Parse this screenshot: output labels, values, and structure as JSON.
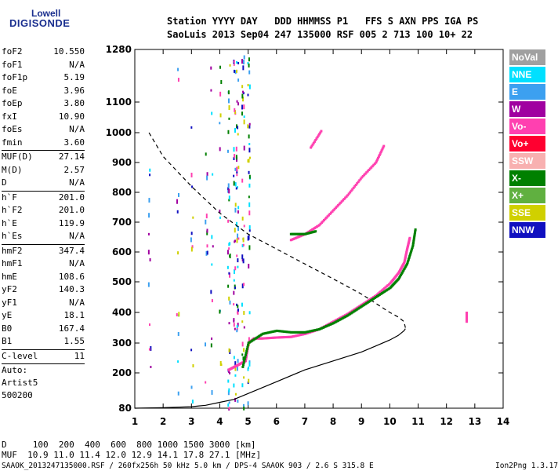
{
  "logo": {
    "line1": "Lowell",
    "line2": "DIGISONDE"
  },
  "header": {
    "row1": "Station YYYY DAY   DDD HHMMSS P1   FFS S AXN PPS IGA PS",
    "row2": "SaoLuis 2013 Sep04 247 135000 RSF 005 2 713 100 10+ 22"
  },
  "params": [
    {
      "k": "foF2",
      "v": "10.550"
    },
    {
      "k": "foF1",
      "v": "N/A"
    },
    {
      "k": "foF1p",
      "v": "5.19"
    },
    {
      "k": "foE",
      "v": "3.96"
    },
    {
      "k": "foEp",
      "v": "3.80"
    },
    {
      "k": "fxI",
      "v": "10.90"
    },
    {
      "k": "foEs",
      "v": "N/A"
    },
    {
      "k": "fmin",
      "v": "3.60"
    },
    {
      "k": "MUF(D)",
      "v": "27.14"
    },
    {
      "k": "M(D)",
      "v": "2.57"
    },
    {
      "k": "D",
      "v": "N/A"
    },
    {
      "k": "h`F",
      "v": "201.0"
    },
    {
      "k": "h`F2",
      "v": "201.0"
    },
    {
      "k": "h`E",
      "v": "119.9"
    },
    {
      "k": "h`Es",
      "v": "N/A"
    },
    {
      "k": "hmF2",
      "v": "347.4"
    },
    {
      "k": "hmF1",
      "v": "N/A"
    },
    {
      "k": "hmE",
      "v": "108.6"
    },
    {
      "k": "yF2",
      "v": "140.3"
    },
    {
      "k": "yF1",
      "v": "N/A"
    },
    {
      "k": "yE",
      "v": "18.1"
    },
    {
      "k": "B0",
      "v": "167.4"
    },
    {
      "k": "B1",
      "v": "1.55"
    },
    {
      "k": "C-level",
      "v": "11"
    }
  ],
  "auto": {
    "line1": "Auto:",
    "line2": "Artist5",
    "line3": "500200"
  },
  "legend": [
    {
      "label": "NoVal",
      "color": "#a0a0a0"
    },
    {
      "label": "NNE",
      "color": "#00e0ff"
    },
    {
      "label": "E",
      "color": "#3ca0f0"
    },
    {
      "label": "W",
      "color": "#a000a0"
    },
    {
      "label": "Vo-",
      "color": "#ff40b0"
    },
    {
      "label": "Vo+",
      "color": "#ff0030"
    },
    {
      "label": "SSW",
      "color": "#f8b0b0"
    },
    {
      "label": "X-",
      "color": "#008000"
    },
    {
      "label": "X+",
      "color": "#60b040"
    },
    {
      "label": "SSE",
      "color": "#d0d000"
    },
    {
      "label": "NNW",
      "color": "#1010c0"
    }
  ],
  "footer": {
    "dline": "D     100  200  400  600  800 1000 1500 3000 [km]",
    "mufline": "MUF  10.9 11.0 11.4 12.0 12.9 14.1 17.8 27.1 [MHz]",
    "info": "SAAOK_2013247135000.RSF / 260fx256h 50 kHz 5.0 km / DPS-4 SAAOK 903 / 2.6 S 315.8 E",
    "version": "Ion2Png 1.3.17"
  },
  "chart_data": {
    "type": "scatter",
    "xlim": [
      1,
      14
    ],
    "ylim": [
      80,
      1280
    ],
    "xticks": [
      "1",
      "2",
      "3",
      "4",
      "5",
      "6",
      "7",
      "8",
      "9",
      "10",
      "11",
      "12",
      "13",
      "14"
    ],
    "yticks": [
      "80",
      "200",
      "300",
      "400",
      "500",
      "600",
      "700",
      "800",
      "900",
      "1000",
      "1100",
      "1280"
    ],
    "series": [
      {
        "kind": "line",
        "dash": false,
        "color": "#000",
        "x": [
          1.0,
          2.0,
          3.0,
          3.5,
          4.0,
          4.5,
          5.0,
          5.5,
          6.0,
          7.0,
          8.0,
          9.0,
          9.5,
          10.0,
          10.3,
          10.5,
          10.55
        ],
        "y": [
          80,
          82,
          85,
          90,
          100,
          110,
          130,
          150,
          170,
          210,
          240,
          270,
          290,
          310,
          325,
          340,
          347
        ]
      },
      {
        "kind": "line",
        "dash": true,
        "color": "#000",
        "x": [
          1.5,
          2.0,
          3.0,
          4.0,
          5.0,
          6.0,
          7.0,
          8.0,
          9.0,
          9.5,
          10.0,
          10.3,
          10.5,
          10.55
        ],
        "y": [
          1000,
          920,
          820,
          730,
          660,
          610,
          560,
          510,
          460,
          430,
          400,
          385,
          370,
          350
        ]
      },
      {
        "kind": "trace",
        "color": "#ff40b0",
        "x": [
          4.3,
          4.6,
          4.9,
          5.0,
          5.2,
          5.5,
          6.0,
          6.5,
          7.0,
          7.5,
          8.0,
          8.5,
          9.0,
          9.5,
          10.0,
          10.3,
          10.5,
          10.6,
          10.7
        ],
        "y": [
          210,
          225,
          240,
          300,
          315,
          315,
          318,
          320,
          330,
          345,
          370,
          395,
          425,
          455,
          495,
          530,
          565,
          610,
          650
        ]
      },
      {
        "kind": "trace",
        "color": "#008000",
        "x": [
          4.8,
          5.0,
          5.5,
          6.0,
          6.5,
          7.0,
          7.5,
          8.0,
          8.5,
          9.0,
          9.5,
          10.0,
          10.3,
          10.6,
          10.8,
          10.9
        ],
        "y": [
          220,
          300,
          330,
          340,
          335,
          335,
          345,
          365,
          390,
          420,
          450,
          480,
          510,
          560,
          620,
          680
        ]
      },
      {
        "kind": "trace",
        "color": "#ff40b0",
        "x": [
          6.5,
          7.0,
          7.5,
          8.0,
          8.5,
          9.0,
          9.5,
          9.8
        ],
        "y": [
          640,
          660,
          690,
          740,
          790,
          850,
          900,
          960
        ]
      },
      {
        "kind": "trace",
        "color": "#008000",
        "x": [
          6.5,
          7.0,
          7.4
        ],
        "y": [
          660,
          660,
          670
        ]
      },
      {
        "kind": "trace",
        "color": "#ff40b0",
        "x": [
          7.2,
          7.6
        ],
        "y": [
          950,
          1010
        ]
      },
      {
        "kind": "trace",
        "color": "#ff40b0",
        "x": [
          12.7,
          12.7,
          12.7
        ],
        "y": [
          370,
          385,
          400
        ]
      }
    ],
    "scatter_columns": [
      1.5,
      2.5,
      3.0,
      3.5,
      3.7,
      4.0,
      4.3,
      4.5,
      4.6,
      4.8,
      5.0
    ],
    "title": "",
    "xlabel": "",
    "ylabel": ""
  }
}
